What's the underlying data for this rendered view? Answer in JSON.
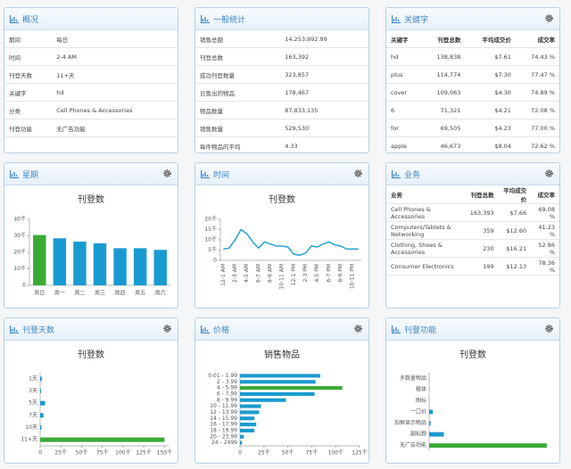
{
  "panels": [
    {
      "title": "概况",
      "settings_icon": false,
      "table": {
        "rows": [
          [
            "期间",
            "每日"
          ],
          [
            "时间",
            "2-4 AM"
          ],
          [
            "刊登天数",
            "11+天"
          ],
          [
            "关键字",
            "hd"
          ],
          [
            "分类",
            "Cell Phones & Accessories"
          ],
          [
            "刊登功能",
            "无广告功能"
          ]
        ]
      }
    },
    {
      "title": "一般统计",
      "settings_icon": false,
      "table": {
        "rows": [
          [
            "销售总额",
            "14,253,992.99"
          ],
          [
            "刊登总数",
            "163,392"
          ],
          [
            "成功刊登数量",
            "323,857"
          ],
          [
            "已售出的物品",
            "178,467"
          ],
          [
            "物品数量",
            "87,833,135"
          ],
          [
            "销售数量",
            "529,530"
          ],
          [
            "每件物品的平均",
            "4.33"
          ]
        ]
      }
    },
    {
      "title": "关键字",
      "settings_icon": true,
      "table": {
        "header": [
          "关键字",
          "刊登总数",
          "平均成交价",
          "成交率"
        ],
        "rows": [
          [
            "hd",
            "138,838",
            "$7.61",
            "74.43 %"
          ],
          [
            "plus",
            "114,774",
            "$7.30",
            "77.47 %"
          ],
          [
            "cover",
            "109,063",
            "$4.30",
            "74.89 %"
          ],
          [
            "6",
            "71,321",
            "$4.21",
            "72.08 %"
          ],
          [
            "for",
            "69,505",
            "$4.23",
            "77.00 %"
          ],
          [
            "apple",
            "46,673",
            "$8.04",
            "72.62 %"
          ]
        ]
      }
    },
    {
      "title": "星期",
      "settings_icon": true,
      "chart": {
        "type": "bar",
        "title": "刊登数",
        "categories": [
          "周日",
          "周一",
          "周二",
          "周三",
          "周四",
          "周五",
          "周六"
        ],
        "values": [
          30500,
          28500,
          26500,
          25500,
          22500,
          22500,
          21500
        ],
        "colors": [
          "#3aaa35",
          "#1a9bd0",
          "#1a9bd0",
          "#1a9bd0",
          "#1a9bd0",
          "#1a9bd0",
          "#1a9bd0"
        ],
        "ylim": [
          0,
          40000
        ],
        "yticks": [
          0,
          {
            "value": 10000,
            "label": "10千"
          },
          {
            "value": 20000,
            "label": "20千"
          },
          {
            "value": 30000,
            "label": "30千"
          },
          {
            "value": 40000,
            "label": "40千"
          }
        ]
      }
    },
    {
      "title": "时间",
      "settings_icon": true,
      "chart": {
        "type": "line",
        "title": "刊登数",
        "categories": [
          "12-1 AM",
          null,
          "2-3 AM",
          null,
          "4-5 AM",
          null,
          "6-7 AM",
          null,
          "8-9 AM",
          null,
          "10-11 AM",
          null,
          "12-1 PM",
          null,
          "2-3 PM",
          null,
          "4-5 PM",
          null,
          "6-7 PM",
          null,
          "8-9 PM",
          null,
          "10-11 PM",
          null
        ],
        "values": [
          5500,
          6000,
          10000,
          15000,
          13000,
          9000,
          6000,
          9000,
          8000,
          7000,
          7000,
          6500,
          3000,
          2500,
          3500,
          7000,
          6500,
          8000,
          9000,
          7500,
          7000,
          5500,
          5500,
          5500
        ],
        "color": "#1a9bd0",
        "ylim": [
          0,
          20000
        ],
        "yticks": [
          0,
          {
            "value": 5000,
            "label": "5千"
          },
          {
            "value": 10000,
            "label": "10千"
          },
          {
            "value": 15000,
            "label": "15千"
          },
          {
            "value": 20000,
            "label": "20千"
          }
        ]
      }
    },
    {
      "title": "业务",
      "settings_icon": true,
      "table": {
        "header": [
          "业务",
          "刊登总数",
          "平均成交价",
          "成交率"
        ],
        "rows": [
          [
            "Cell Phones & Accessories",
            "163,393",
            "$7.66",
            "69.08 %"
          ],
          [
            "Computers/Tablets & Networking",
            "359",
            "$12.60",
            "41.23 %"
          ],
          [
            "Clothing, Shoes & Accessories",
            "230",
            "$16.21",
            "52.86 %"
          ],
          [
            "Consumer Electronics",
            "199",
            "$12.13",
            "78.36 %"
          ]
        ]
      }
    },
    {
      "title": "刊登天数",
      "settings_icon": true,
      "chart": {
        "type": "barh",
        "title": "刊登数",
        "categories": [
          "1天",
          "3天",
          "5天",
          "7天",
          "10天",
          "11+天"
        ],
        "values": [
          2000,
          1000,
          6000,
          4000,
          1500,
          150000
        ],
        "colors": [
          "#1a9bd0",
          "#1a9bd0",
          "#1a9bd0",
          "#1a9bd0",
          "#1a9bd0",
          "#3aaa35"
        ],
        "xlim": [
          0,
          155000
        ],
        "xticks": [
          0,
          {
            "value": 25000,
            "label": "25千"
          },
          {
            "value": 50000,
            "label": "50千"
          },
          {
            "value": 75000,
            "label": "75千"
          },
          {
            "value": 100000,
            "label": "100千"
          },
          {
            "value": 125000,
            "label": "125千"
          },
          {
            "value": 150000,
            "label": "150千"
          }
        ]
      }
    },
    {
      "title": "价格",
      "settings_icon": true,
      "chart": {
        "type": "barh",
        "title": "销售物品",
        "categories": [
          "0.01 - 1.99",
          "2 - 3.99",
          "4 - 5.99",
          "6 - 7.99",
          "8 - 9.99",
          "10 - 11.99",
          "12 - 13.99",
          "14 - 15.99",
          "16 - 17.99",
          "18 - 19.99",
          "20 - 23.99",
          "24 - 2499"
        ],
        "values": [
          84000,
          79000,
          107000,
          78000,
          48000,
          22000,
          20000,
          15000,
          17000,
          15000,
          4000,
          2000
        ],
        "colors": [
          "#1a9bd0",
          "#1a9bd0",
          "#3aaa35",
          "#1a9bd0",
          "#1a9bd0",
          "#1a9bd0",
          "#1a9bd0",
          "#1a9bd0",
          "#1a9bd0",
          "#1a9bd0",
          "#1a9bd0",
          "#1a9bd0"
        ],
        "xlim": [
          0,
          125000
        ],
        "xticks": [
          0,
          {
            "value": 25000,
            "label": "25千"
          },
          {
            "value": 50000,
            "label": "50千"
          },
          {
            "value": 75000,
            "label": "75千"
          },
          {
            "value": 100000,
            "label": "100千"
          },
          {
            "value": 125000,
            "label": "125千"
          }
        ]
      }
    },
    {
      "title": "刊登功能",
      "settings_icon": true,
      "chart": {
        "type": "barh",
        "title": "刊登数",
        "categories": [
          "多数量物品",
          "粗体",
          "图标",
          "一口价",
          "加框显示物品",
          "副标题",
          "无广告功能"
        ],
        "values": [
          300,
          200,
          200,
          5000,
          2000,
          20000,
          160000
        ],
        "colors": [
          "#1a9bd0",
          "#1a9bd0",
          "#1a9bd0",
          "#1a9bd0",
          "#1a9bd0",
          "#1a9bd0",
          "#3aaa35"
        ],
        "xlim": [
          0,
          165000
        ]
      }
    }
  ]
}
